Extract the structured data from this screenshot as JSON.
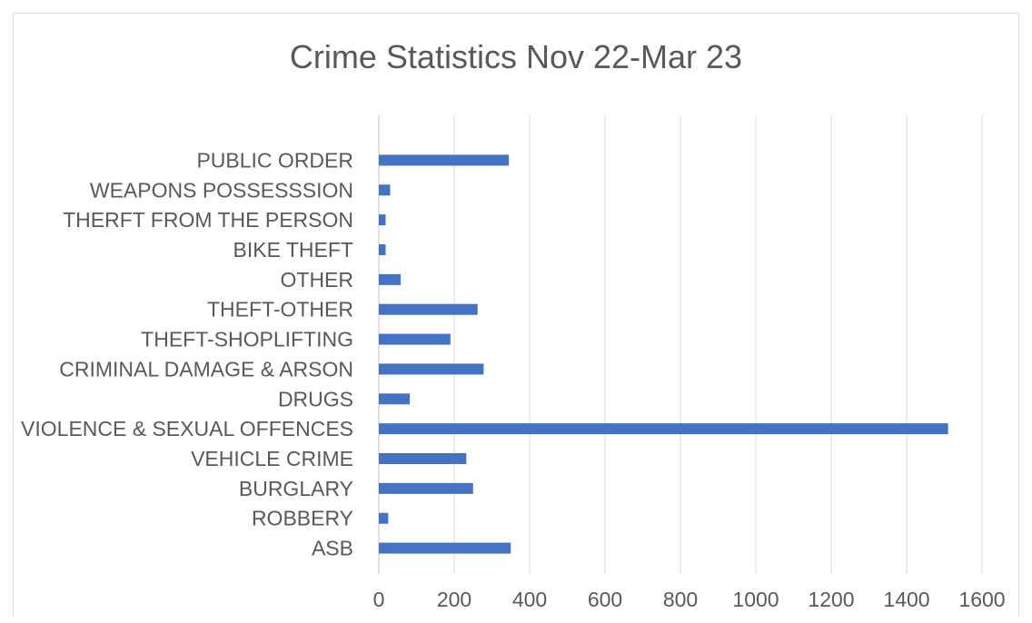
{
  "chart_data": {
    "type": "bar",
    "orientation": "horizontal",
    "title": "Crime Statistics Nov 22-Mar 23",
    "xlabel": "",
    "ylabel": "",
    "categories": [
      "PUBLIC ORDER",
      "WEAPONS POSSESSSION",
      "THERFT FROM THE PERSON",
      "BIKE THEFT",
      "OTHER",
      "THEFT-OTHER",
      "THEFT-SHOPLIFTING",
      "CRIMINAL DAMAGE & ARSON",
      "DRUGS",
      "VIOLENCE & SEXUAL OFFENCES",
      "VEHICLE CRIME",
      "BURGLARY",
      "ROBBERY",
      "ASB"
    ],
    "values": [
      345,
      30,
      18,
      18,
      58,
      262,
      190,
      278,
      82,
      1510,
      232,
      250,
      25,
      350
    ],
    "xlim": [
      0,
      1600
    ],
    "xticks": [
      "0",
      "200",
      "400",
      "600",
      "800",
      "1000",
      "1200",
      "1400",
      "1600"
    ],
    "grid": true,
    "legend": "none",
    "bar_color": "#4472c4",
    "grid_color": "#d9d9d9"
  }
}
